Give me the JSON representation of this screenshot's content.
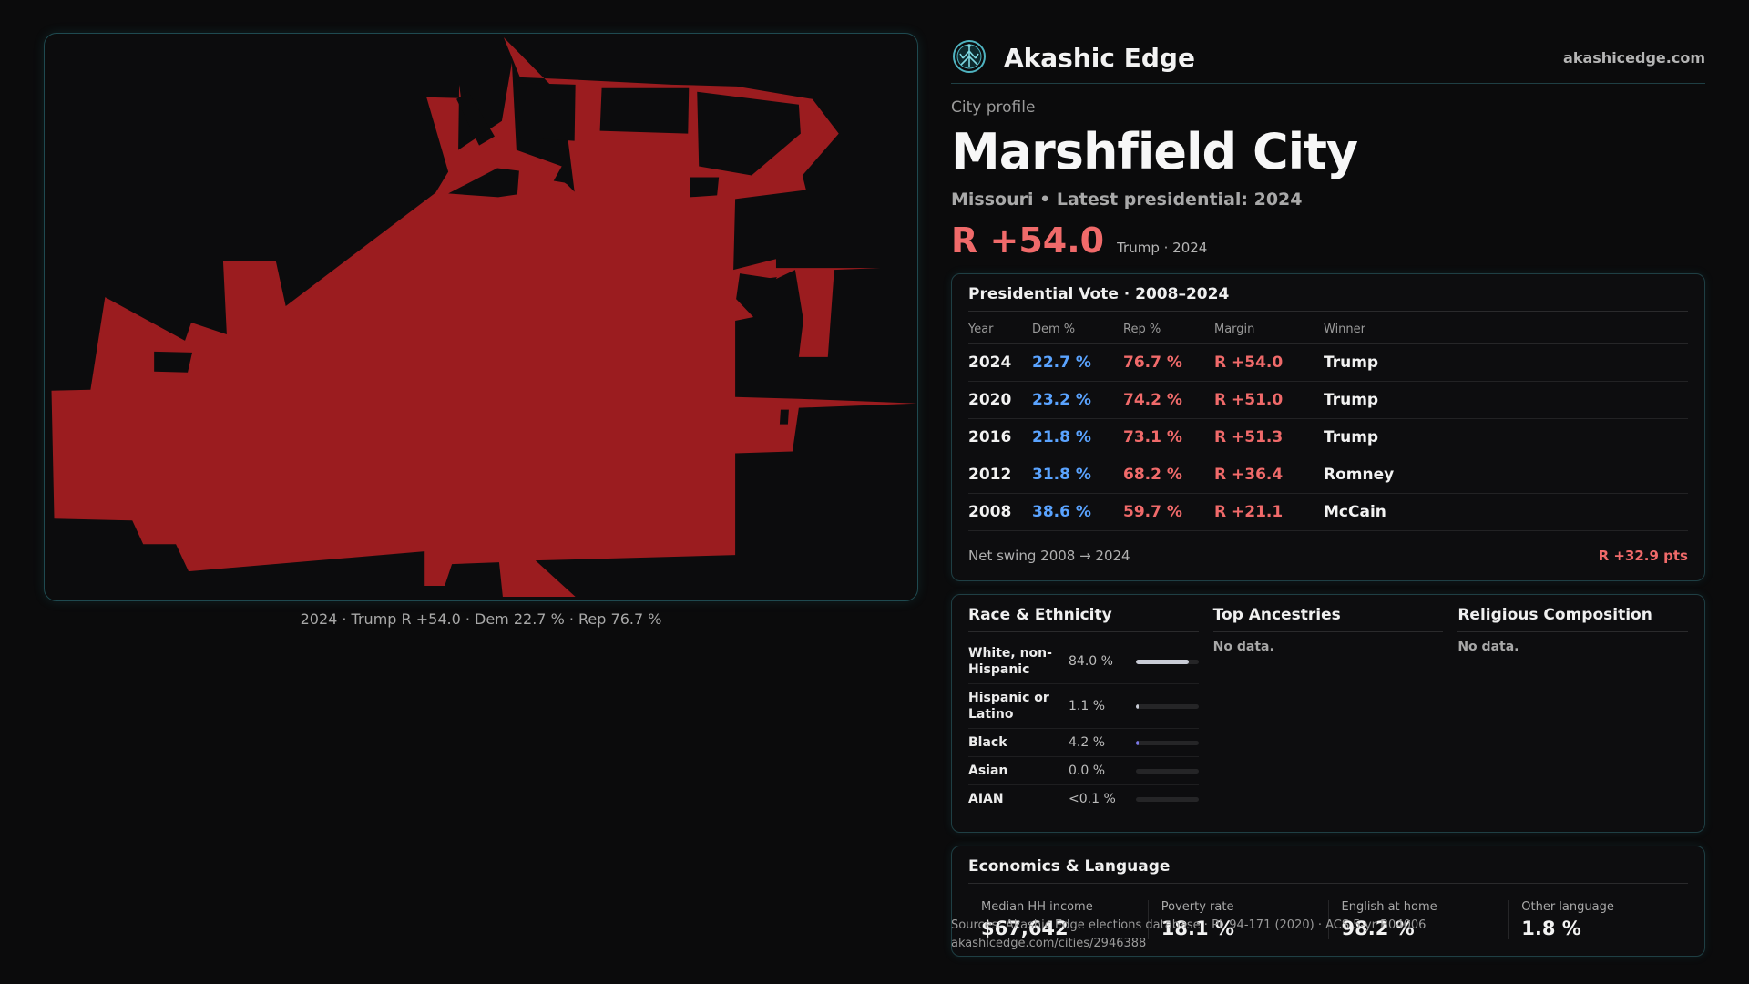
{
  "map": {
    "fill_color": "#9b1c1f",
    "caption": "2024 · Trump R +54.0 · Dem 22.7 % · Rep 76.7 %"
  },
  "brand": {
    "name": "Akashic Edge",
    "url": "akashicedge.com",
    "logo_icon": "globe-tree-icon"
  },
  "profile": {
    "eyebrow": "City profile",
    "city": "Marshfield City",
    "subline": "Missouri • Latest presidential: 2024",
    "margin": "R +54.0",
    "margin_note": "Trump · 2024"
  },
  "vote": {
    "title": "Presidential Vote · 2008–2024",
    "headers": {
      "year": "Year",
      "dem": "Dem %",
      "rep": "Rep %",
      "margin": "Margin",
      "winner": "Winner"
    },
    "rows": [
      {
        "year": "2024",
        "dem": "22.7 %",
        "rep": "76.7 %",
        "margin": "R +54.0",
        "winner": "Trump"
      },
      {
        "year": "2020",
        "dem": "23.2 %",
        "rep": "74.2 %",
        "margin": "R +51.0",
        "winner": "Trump"
      },
      {
        "year": "2016",
        "dem": "21.8 %",
        "rep": "73.1 %",
        "margin": "R +51.3",
        "winner": "Trump"
      },
      {
        "year": "2012",
        "dem": "31.8 %",
        "rep": "68.2 %",
        "margin": "R +36.4",
        "winner": "Romney"
      },
      {
        "year": "2008",
        "dem": "38.6 %",
        "rep": "59.7 %",
        "margin": "R +21.1",
        "winner": "McCain"
      }
    ],
    "swing_label": "Net swing 2008 → 2024",
    "swing_value": "R +32.9 pts"
  },
  "demographics": {
    "race_title": "Race & Ethnicity",
    "race": [
      {
        "name": "White, non-Hispanic",
        "pct": "84.0 %",
        "share": 0.84,
        "color": "#c9ccd6"
      },
      {
        "name": "Hispanic or Latino",
        "pct": "1.1 %",
        "share": 0.011,
        "color": "#c9ccd6"
      },
      {
        "name": "Black",
        "pct": "4.2 %",
        "share": 0.042,
        "color": "#7b78e8"
      },
      {
        "name": "Asian",
        "pct": "0.0 %",
        "share": 0.0,
        "color": "#c9ccd6"
      },
      {
        "name": "AIAN",
        "pct": "<0.1 %",
        "share": 0.0,
        "color": "#c9ccd6"
      }
    ],
    "ancestry_title": "Top Ancestries",
    "ancestry_empty": "No data.",
    "religion_title": "Religious Composition",
    "religion_empty": "No data."
  },
  "economics": {
    "title": "Economics & Language",
    "stats": [
      {
        "label": "Median HH income",
        "value": "$67,642"
      },
      {
        "label": "Poverty rate",
        "value": "18.1 %"
      },
      {
        "label": "English at home",
        "value": "98.2 %"
      },
      {
        "label": "Other language",
        "value": "1.8 %"
      }
    ]
  },
  "footer": {
    "source": "Sources: Akashic Edge elections database · PL 94-171 (2020) · ACS 5-yr B04006",
    "link": "akashicedge.com/cities/2946388"
  }
}
